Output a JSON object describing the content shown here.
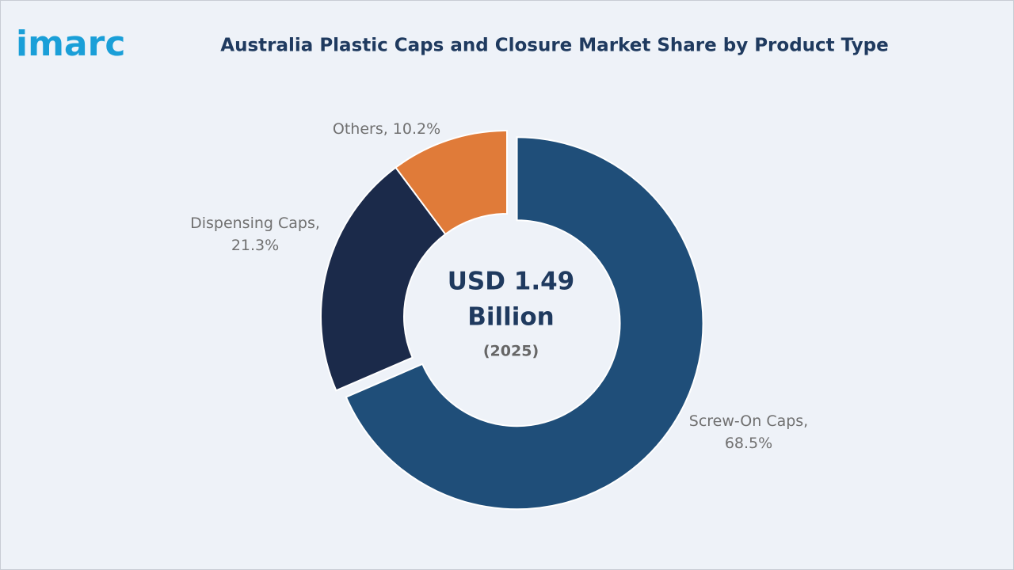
{
  "logo": "imarc",
  "chart_data": {
    "type": "pie",
    "donut": true,
    "title": "Australia Plastic Caps and Closure Market Share by Product Type",
    "categories": [
      "Screw-On Caps,",
      "Dispensing Caps,",
      "Others,"
    ],
    "values": [
      68.5,
      21.3,
      10.2
    ],
    "value_labels": [
      "68.5%",
      "21.3%",
      "10.2%"
    ],
    "colors": [
      "#1f4e79",
      "#1b2a4a",
      "#e07b39"
    ],
    "center_lines": [
      "USD 1.49",
      "Billion"
    ],
    "center_sub": "(2025)"
  }
}
